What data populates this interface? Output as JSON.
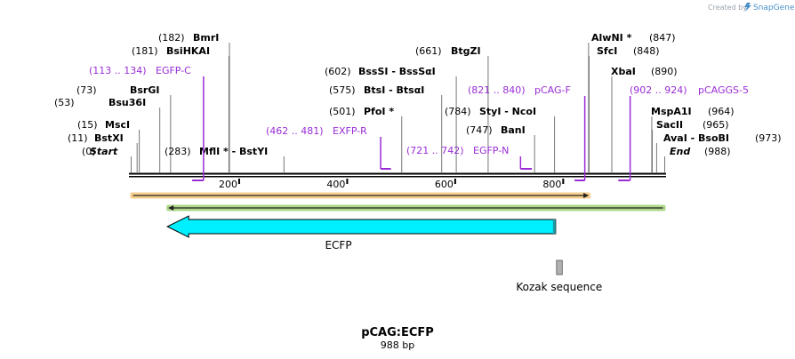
{
  "branding": {
    "credit_text": "Created by",
    "app_name": "SnapGene",
    "logo_color": "#4a90c8"
  },
  "plasmid": {
    "name": "pCAG:ECFP",
    "size_label": "988 bp",
    "length": 988
  },
  "colors": {
    "primer": "#9a2cd6",
    "backbone": "#000000",
    "ecfp_fill": "#00f0ff",
    "kozak_fill": "#b0b0b0",
    "orange": "#f0a830",
    "green": "#6ab82a"
  },
  "axis_ticks": [
    {
      "label": "200",
      "bp": 200
    },
    {
      "label": "400",
      "bp": 400
    },
    {
      "label": "600",
      "bp": 600
    },
    {
      "label": "800",
      "bp": 800
    }
  ],
  "sites": [
    {
      "pos": "(0)",
      "name": "Start",
      "italic": true,
      "bp": 0
    },
    {
      "pos": "(11)",
      "name": "BstXI",
      "bp": 11
    },
    {
      "pos": "(15)",
      "name": "MscI",
      "bp": 15
    },
    {
      "pos": "(53)",
      "name": "Bsu36I",
      "bp": 53
    },
    {
      "pos": "(73)",
      "name": "BsrGI",
      "bp": 73
    },
    {
      "pos": "(181)",
      "name": "BsiHKAI",
      "bp": 181
    },
    {
      "pos": "(182)",
      "name": "BmrI",
      "bp": 182
    },
    {
      "pos": "(283)",
      "name": "MflI * - BstYI",
      "bp": 283
    },
    {
      "pos": "(501)",
      "name": "PfoI *",
      "bp": 501
    },
    {
      "pos": "(575)",
      "name": "BtsI - BtsαI",
      "bp": 575
    },
    {
      "pos": "(602)",
      "name": "BssSI - BssSαI",
      "bp": 602
    },
    {
      "pos": "(661)",
      "name": "BtgZI",
      "bp": 661
    },
    {
      "pos": "(747)",
      "name": "BanI",
      "bp": 747
    },
    {
      "pos": "(784)",
      "name": "StyI - NcoI",
      "bp": 784
    },
    {
      "pos": "(847)",
      "name": "AlwNI *",
      "bp": 847
    },
    {
      "pos": "(848)",
      "name": "SfcI",
      "bp": 848
    },
    {
      "pos": "(890)",
      "name": "XbaI",
      "bp": 890
    },
    {
      "pos": "(964)",
      "name": "MspA1I",
      "bp": 964
    },
    {
      "pos": "(965)",
      "name": "SacII",
      "bp": 965
    },
    {
      "pos": "(973)",
      "name": "AvaI - BsoBI",
      "bp": 973
    },
    {
      "pos": "(988)",
      "name": "End",
      "italic": true,
      "bp": 988
    }
  ],
  "primers": [
    {
      "range": "(113 .. 134)",
      "name": "EGFP-C",
      "start": 113,
      "end": 134,
      "direction": "reverse"
    },
    {
      "range": "(462 .. 481)",
      "name": "EXFP-R",
      "start": 462,
      "end": 481,
      "direction": "forward"
    },
    {
      "range": "(721 .. 742)",
      "name": "EGFP-N",
      "start": 721,
      "end": 742,
      "direction": "forward"
    },
    {
      "range": "(821 .. 840)",
      "name": "pCAG-F",
      "start": 821,
      "end": 840,
      "direction": "reverse"
    },
    {
      "range": "(902 .. 924)",
      "name": "pCAGGS-5",
      "start": 902,
      "end": 924,
      "direction": "reverse"
    }
  ],
  "features": [
    {
      "name": "ECFP",
      "start": 67,
      "end": 786,
      "direction": "reverse",
      "type": "cds"
    },
    {
      "name": "Kozak sequence",
      "start": 786,
      "end": 795,
      "type": "regulatory"
    }
  ],
  "tracks": [
    {
      "name": "orange",
      "start": 0,
      "end": 849,
      "direction": "forward"
    },
    {
      "name": "green",
      "start": 67,
      "end": 988,
      "direction": "reverse"
    }
  ]
}
